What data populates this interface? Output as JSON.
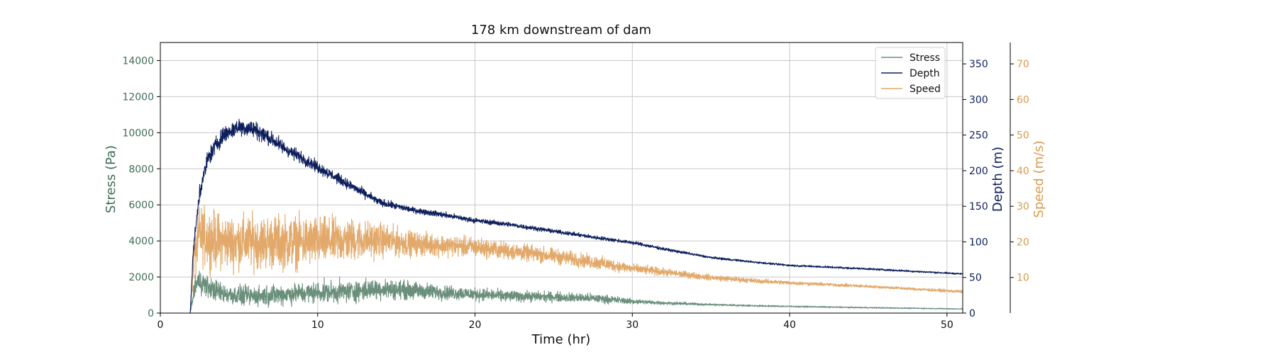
{
  "chart_data": {
    "type": "line",
    "title": "178 km downstream of dam",
    "xlabel": "Time (hr)",
    "xlim": [
      0,
      51
    ],
    "x_ticks": [
      0,
      10,
      20,
      30,
      40,
      50
    ],
    "grid": true,
    "legend_position": "top-right",
    "axes": [
      {
        "id": "stress",
        "label": "Stress (Pa)",
        "side": "left",
        "ylim": [
          0,
          15000
        ],
        "ticks": [
          0,
          2000,
          4000,
          6000,
          8000,
          10000,
          12000,
          14000
        ],
        "color": "#3f6e54"
      },
      {
        "id": "depth",
        "label": "Depth (m)",
        "side": "right",
        "ylim": [
          0,
          380
        ],
        "ticks": [
          0,
          50,
          100,
          150,
          200,
          250,
          300,
          350
        ],
        "color": "#0d1f5c"
      },
      {
        "id": "speed",
        "label": "Speed (m/s)",
        "side": "right-outer",
        "ylim": [
          0,
          76
        ],
        "ticks": [
          10,
          20,
          30,
          40,
          50,
          60,
          70
        ],
        "color": "#d99a4e"
      }
    ],
    "series": [
      {
        "name": "Stress",
        "axis": "stress",
        "color": "#6a8f7b",
        "x": [
          0,
          1.9,
          2.2,
          2.5,
          3,
          4,
          5,
          6,
          7,
          8,
          10,
          12,
          14,
          16,
          18,
          20,
          22,
          25,
          28,
          30,
          32,
          35,
          38,
          40,
          45,
          51
        ],
        "y": [
          0,
          0,
          1500,
          1800,
          1450,
          1100,
          950,
          950,
          1000,
          1050,
          1150,
          1200,
          1350,
          1250,
          1150,
          1050,
          950,
          900,
          800,
          650,
          560,
          470,
          400,
          370,
          300,
          230
        ],
        "noise": [
          0,
          0,
          550,
          500,
          450,
          400,
          400,
          400,
          420,
          420,
          430,
          440,
          420,
          360,
          300,
          260,
          230,
          200,
          180,
          110,
          70,
          45,
          35,
          30,
          25,
          20
        ]
      },
      {
        "name": "Depth",
        "axis": "depth",
        "color": "#0d1f5c",
        "x": [
          0,
          1.9,
          2.1,
          2.5,
          3,
          3.5,
          4,
          5,
          6,
          7,
          8,
          9,
          10,
          12,
          14,
          16,
          18,
          20,
          22,
          25,
          28,
          30,
          32,
          35,
          38,
          40,
          45,
          51
        ],
        "y": [
          0,
          0,
          90,
          170,
          215,
          235,
          250,
          262,
          258,
          245,
          230,
          218,
          205,
          180,
          155,
          145,
          138,
          130,
          125,
          115,
          105,
          99,
          90,
          78,
          71,
          67,
          62,
          55
        ],
        "noise": [
          0,
          0,
          6,
          9,
          9,
          9,
          9,
          9,
          9,
          8,
          7,
          6,
          6,
          5,
          4,
          3,
          3,
          2.5,
          2.5,
          2,
          2,
          1.8,
          1.5,
          1.2,
          1,
          1,
          1,
          0.8
        ]
      },
      {
        "name": "Speed",
        "axis": "speed",
        "color": "#e2a96a",
        "x": [
          0,
          1.9,
          2.1,
          2.5,
          3,
          4,
          6,
          8,
          10,
          12,
          14,
          16,
          18,
          20,
          22,
          25,
          28,
          30,
          32,
          35,
          38,
          40,
          45,
          51
        ],
        "y": [
          0,
          0,
          15,
          22,
          21,
          20,
          20,
          20,
          20,
          20.5,
          20.5,
          19.5,
          19,
          18.5,
          17.5,
          16,
          14,
          12.5,
          11.5,
          10,
          9,
          8.5,
          7.5,
          6
        ],
        "noise": [
          0,
          0,
          5,
          6,
          6,
          5.5,
          5.5,
          5.5,
          5,
          4.5,
          3.5,
          2.5,
          2.2,
          2,
          1.8,
          1.6,
          1.4,
          1,
          0.8,
          0.6,
          0.5,
          0.4,
          0.3,
          0.3
        ]
      }
    ]
  }
}
